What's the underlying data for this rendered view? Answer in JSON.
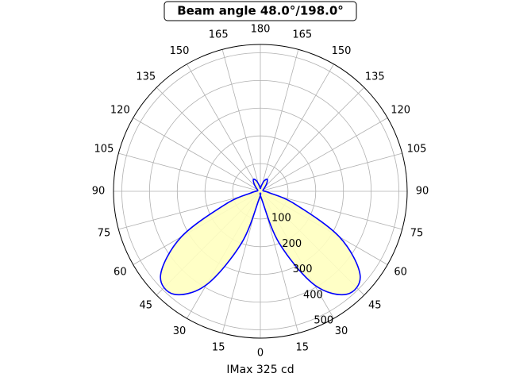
{
  "chart_data": {
    "type": "polar",
    "title": "Beam angle 48.0°/198.0°",
    "xlabel": "IMax 325 cd",
    "x": [
      0,
      10,
      20,
      30,
      40,
      50,
      60,
      70,
      80,
      90,
      100,
      110,
      120,
      130,
      140,
      150,
      160,
      170,
      180,
      190,
      200,
      210,
      220,
      230,
      240,
      250,
      260,
      270,
      280,
      290,
      300,
      310,
      320,
      330,
      340,
      350,
      360
    ],
    "series": [
      {
        "color": "#0000ff",
        "fill": "#ffffc0",
        "values": [
          5,
          30,
          200,
          390,
          485,
          470,
          330,
          130,
          35,
          15,
          10,
          10,
          12,
          20,
          35,
          50,
          40,
          20,
          10,
          20,
          40,
          50,
          35,
          20,
          12,
          10,
          10,
          15,
          35,
          130,
          330,
          470,
          485,
          390,
          200,
          30,
          5
        ]
      }
    ],
    "ylim": [
      0,
      530
    ],
    "yticks": [
      100,
      200,
      300,
      400,
      500
    ],
    "xticks": [
      0,
      15,
      30,
      45,
      60,
      75,
      90,
      105,
      120,
      135,
      150,
      165,
      180,
      {
        "value": 195,
        "label": "165"
      },
      {
        "value": 210,
        "label": "150"
      },
      {
        "value": 225,
        "label": "135"
      },
      {
        "value": 240,
        "label": "120"
      },
      {
        "value": 255,
        "label": "105"
      },
      {
        "value": 270,
        "label": "90"
      },
      {
        "value": 285,
        "label": "75"
      },
      {
        "value": 300,
        "label": "60"
      },
      {
        "value": 315,
        "label": "45"
      },
      {
        "value": 330,
        "label": "30"
      },
      {
        "value": 345,
        "label": "15"
      }
    ],
    "grid": true
  }
}
